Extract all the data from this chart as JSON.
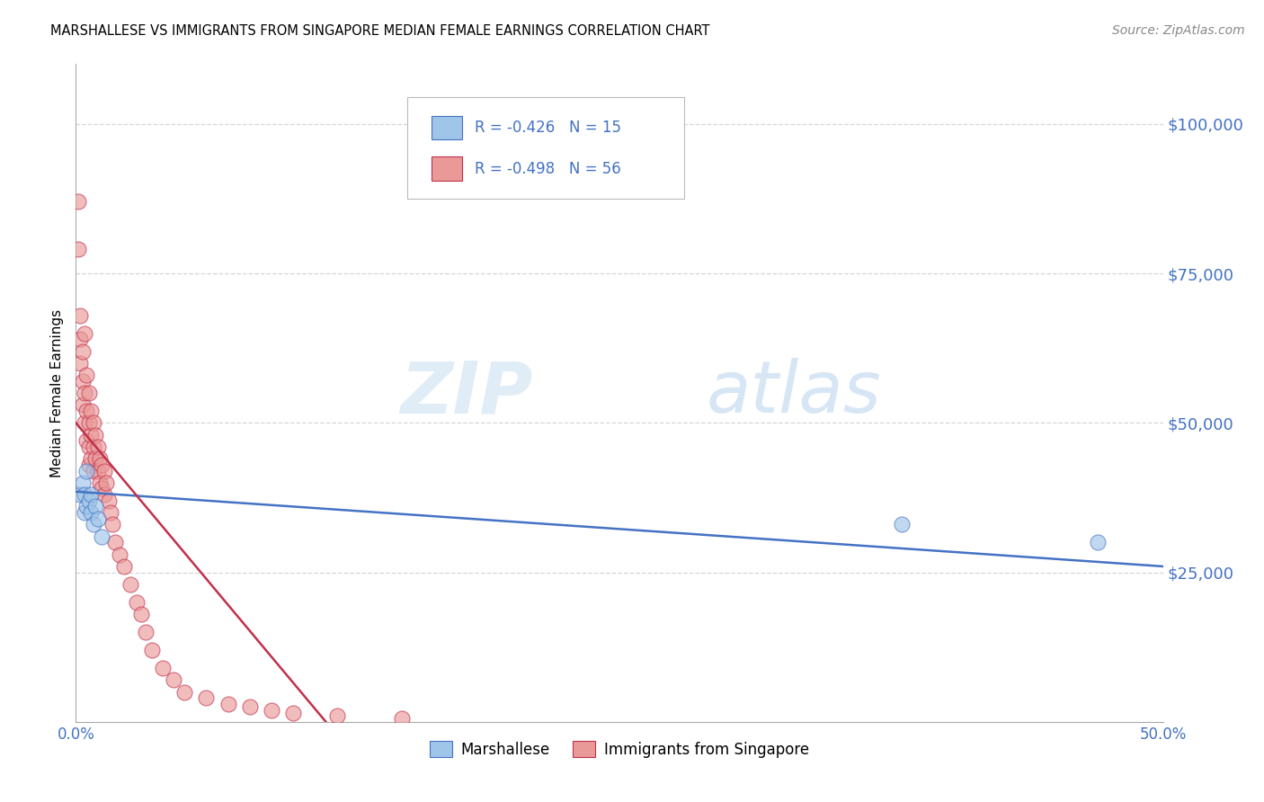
{
  "title": "MARSHALLESE VS IMMIGRANTS FROM SINGAPORE MEDIAN FEMALE EARNINGS CORRELATION CHART",
  "source": "Source: ZipAtlas.com",
  "ylabel": "Median Female Earnings",
  "ytick_labels": [
    "$25,000",
    "$50,000",
    "$75,000",
    "$100,000"
  ],
  "ytick_values": [
    25000,
    50000,
    75000,
    100000
  ],
  "xmin": 0.0,
  "xmax": 0.5,
  "ymin": 0,
  "ymax": 110000,
  "legend_label1": "Marshallese",
  "legend_label2": "Immigrants from Singapore",
  "legend_R1": "-0.426",
  "legend_N1": "15",
  "legend_R2": "-0.498",
  "legend_N2": "56",
  "color_blue": "#9fc5e8",
  "color_pink": "#ea9999",
  "color_blue_line": "#4472c4",
  "color_pink_line": "#c0304a",
  "color_blue_text": "#4472c4",
  "background_color": "#ffffff",
  "watermark_zip": "ZIP",
  "watermark_atlas": "atlas",
  "marshallese_x": [
    0.002,
    0.003,
    0.004,
    0.004,
    0.005,
    0.005,
    0.006,
    0.007,
    0.007,
    0.008,
    0.009,
    0.01,
    0.012,
    0.38,
    0.47
  ],
  "marshallese_y": [
    38000,
    40000,
    38000,
    35000,
    42000,
    36000,
    37000,
    38000,
    35000,
    33000,
    36000,
    34000,
    31000,
    33000,
    30000
  ],
  "singapore_x": [
    0.001,
    0.001,
    0.002,
    0.002,
    0.002,
    0.003,
    0.003,
    0.003,
    0.004,
    0.004,
    0.004,
    0.005,
    0.005,
    0.005,
    0.006,
    0.006,
    0.006,
    0.006,
    0.007,
    0.007,
    0.007,
    0.008,
    0.008,
    0.008,
    0.009,
    0.009,
    0.01,
    0.01,
    0.011,
    0.011,
    0.012,
    0.012,
    0.013,
    0.013,
    0.014,
    0.015,
    0.016,
    0.017,
    0.018,
    0.02,
    0.022,
    0.025,
    0.028,
    0.03,
    0.032,
    0.035,
    0.04,
    0.045,
    0.05,
    0.06,
    0.07,
    0.08,
    0.09,
    0.1,
    0.12,
    0.15
  ],
  "singapore_y": [
    87000,
    79000,
    68000,
    64000,
    60000,
    62000,
    57000,
    53000,
    65000,
    55000,
    50000,
    58000,
    52000,
    47000,
    55000,
    50000,
    46000,
    43000,
    52000,
    48000,
    44000,
    50000,
    46000,
    42000,
    48000,
    44000,
    46000,
    42000,
    44000,
    40000,
    43000,
    39000,
    42000,
    38000,
    40000,
    37000,
    35000,
    33000,
    30000,
    28000,
    26000,
    23000,
    20000,
    18000,
    15000,
    12000,
    9000,
    7000,
    5000,
    4000,
    3000,
    2500,
    2000,
    1500,
    1000,
    500
  ],
  "blue_line_x": [
    0.0,
    0.5
  ],
  "blue_line_y": [
    38500,
    26000
  ],
  "pink_line_x": [
    0.0,
    0.115
  ],
  "pink_line_y": [
    50000,
    0
  ]
}
